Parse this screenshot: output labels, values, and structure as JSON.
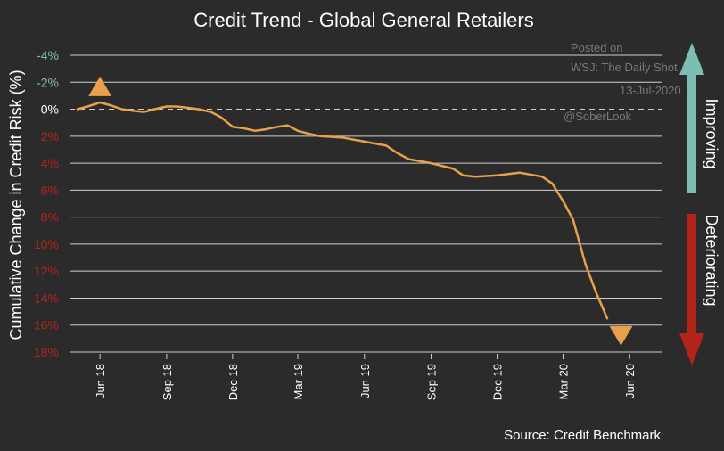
{
  "watermark": {
    "line1": "Posted on",
    "line2": "WSJ: The Daily Shot",
    "line3": "13-Jul-2020",
    "line4": "@SoberLook"
  },
  "side_labels": {
    "improving": "Improving",
    "deteriorating": "Deteriorating",
    "improving_color": "#7cbeb1",
    "deteriorating_color": "#b3241b"
  },
  "chart_data": {
    "type": "line",
    "title": "Credit Trend - Global General Retailers",
    "ylabel": "Cumulative Change in Credit Risk (%)",
    "xlabel": "",
    "source": "Source: Credit Benchmark",
    "y_inverted": true,
    "ylim": [
      -4,
      18
    ],
    "yticks": [
      {
        "value": -4,
        "label": "-4%",
        "color": "#7cbeb1"
      },
      {
        "value": -2,
        "label": "-2%",
        "color": "#7cbeb1"
      },
      {
        "value": 0,
        "label": "0%",
        "color": "#ffffff"
      },
      {
        "value": 2,
        "label": "2%",
        "color": "#b3241b"
      },
      {
        "value": 4,
        "label": "4%",
        "color": "#b3241b"
      },
      {
        "value": 6,
        "label": "6%",
        "color": "#b3241b"
      },
      {
        "value": 8,
        "label": "8%",
        "color": "#b3241b"
      },
      {
        "value": 10,
        "label": "10%",
        "color": "#b3241b"
      },
      {
        "value": 12,
        "label": "12%",
        "color": "#b3241b"
      },
      {
        "value": 14,
        "label": "14%",
        "color": "#b3241b"
      },
      {
        "value": 16,
        "label": "16%",
        "color": "#b3241b"
      },
      {
        "value": 18,
        "label": "18%",
        "color": "#b3241b"
      }
    ],
    "xlim": [
      "2018-04-20",
      "2020-07-15"
    ],
    "xticks": [
      {
        "date": "2018-06-01",
        "label": "Jun 18"
      },
      {
        "date": "2018-09-01",
        "label": "Sep 18"
      },
      {
        "date": "2018-12-01",
        "label": "Dec 18"
      },
      {
        "date": "2019-03-01",
        "label": "Mar 19"
      },
      {
        "date": "2019-06-01",
        "label": "Jun 19"
      },
      {
        "date": "2019-09-01",
        "label": "Sep 19"
      },
      {
        "date": "2019-12-01",
        "label": "Dec 19"
      },
      {
        "date": "2020-03-01",
        "label": "Mar 20"
      },
      {
        "date": "2020-06-01",
        "label": "Jun 20"
      }
    ],
    "grid": true,
    "zero_line": "dashed",
    "series": [
      {
        "color": "#e8a04a",
        "points": [
          {
            "x": "2018-05-01",
            "y": 0.0
          },
          {
            "x": "2018-05-15",
            "y": -0.2
          },
          {
            "x": "2018-06-01",
            "y": -0.5
          },
          {
            "x": "2018-06-15",
            "y": -0.3
          },
          {
            "x": "2018-07-01",
            "y": 0.0
          },
          {
            "x": "2018-07-15",
            "y": 0.1
          },
          {
            "x": "2018-08-01",
            "y": 0.2
          },
          {
            "x": "2018-08-15",
            "y": 0.0
          },
          {
            "x": "2018-09-01",
            "y": -0.2
          },
          {
            "x": "2018-09-15",
            "y": -0.2
          },
          {
            "x": "2018-10-01",
            "y": -0.1
          },
          {
            "x": "2018-10-15",
            "y": 0.0
          },
          {
            "x": "2018-11-01",
            "y": 0.2
          },
          {
            "x": "2018-11-15",
            "y": 0.6
          },
          {
            "x": "2018-12-01",
            "y": 1.3
          },
          {
            "x": "2018-12-15",
            "y": 1.4
          },
          {
            "x": "2019-01-01",
            "y": 1.6
          },
          {
            "x": "2019-01-15",
            "y": 1.5
          },
          {
            "x": "2019-02-01",
            "y": 1.3
          },
          {
            "x": "2019-02-15",
            "y": 1.2
          },
          {
            "x": "2019-03-01",
            "y": 1.6
          },
          {
            "x": "2019-03-15",
            "y": 1.8
          },
          {
            "x": "2019-04-01",
            "y": 2.0
          },
          {
            "x": "2019-05-01",
            "y": 2.1
          },
          {
            "x": "2019-06-01",
            "y": 2.4
          },
          {
            "x": "2019-07-01",
            "y": 2.7
          },
          {
            "x": "2019-07-15",
            "y": 3.2
          },
          {
            "x": "2019-08-01",
            "y": 3.7
          },
          {
            "x": "2019-09-01",
            "y": 4.0
          },
          {
            "x": "2019-10-01",
            "y": 4.4
          },
          {
            "x": "2019-10-15",
            "y": 4.9
          },
          {
            "x": "2019-11-01",
            "y": 5.0
          },
          {
            "x": "2019-12-01",
            "y": 4.9
          },
          {
            "x": "2020-01-01",
            "y": 4.7
          },
          {
            "x": "2020-02-01",
            "y": 5.0
          },
          {
            "x": "2020-02-15",
            "y": 5.5
          },
          {
            "x": "2020-03-01",
            "y": 6.8
          },
          {
            "x": "2020-03-15",
            "y": 8.2
          },
          {
            "x": "2020-04-01",
            "y": 11.5
          },
          {
            "x": "2020-04-15",
            "y": 13.5
          },
          {
            "x": "2020-05-01",
            "y": 15.5
          }
        ]
      }
    ],
    "annotations": [
      {
        "type": "triangle-up",
        "x": "2018-06-01",
        "y": -1.7,
        "color": "#e8a04a"
      },
      {
        "type": "triangle-down",
        "x": "2020-05-20",
        "y": 16.8,
        "color": "#e8a04a"
      }
    ]
  }
}
